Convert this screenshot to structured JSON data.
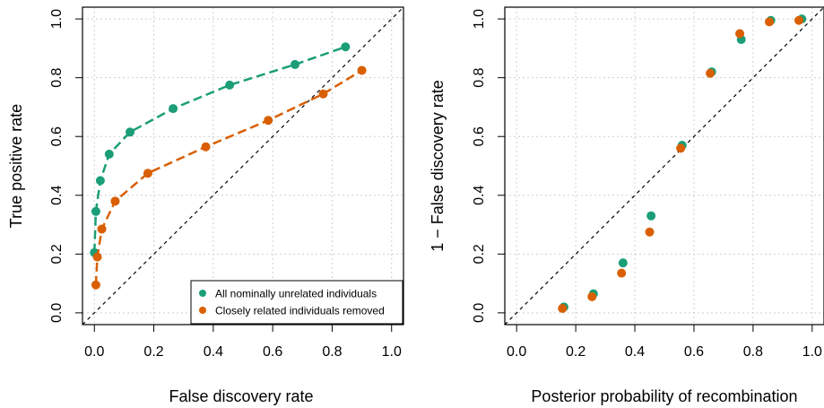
{
  "colors": {
    "series1": "#1b9e77",
    "series2": "#d95f02"
  },
  "chart_data": [
    {
      "type": "line",
      "xlabel": "False discovery rate",
      "ylabel": "True positive rate",
      "xlim": [
        0,
        1
      ],
      "ylim": [
        0,
        1
      ],
      "xticks": [
        "0.0",
        "0.2",
        "0.4",
        "0.6",
        "0.8",
        "1.0"
      ],
      "yticks": [
        "0.0",
        "0.2",
        "0.4",
        "0.6",
        "0.8",
        "1.0"
      ],
      "grid": true,
      "diagonal_reference": true,
      "legend": "bottom-right",
      "series": [
        {
          "name": "All nominally unrelated individuals",
          "color": "#1b9e77",
          "x": [
            0.0,
            0.005,
            0.02,
            0.05,
            0.12,
            0.265,
            0.455,
            0.675,
            0.845
          ],
          "y": [
            0.205,
            0.345,
            0.45,
            0.54,
            0.615,
            0.695,
            0.775,
            0.845,
            0.905
          ]
        },
        {
          "name": "Closely related individuals removed",
          "color": "#d95f02",
          "x": [
            0.005,
            0.01,
            0.025,
            0.07,
            0.18,
            0.375,
            0.585,
            0.77,
            0.9
          ],
          "y": [
            0.095,
            0.19,
            0.285,
            0.38,
            0.475,
            0.565,
            0.655,
            0.745,
            0.825
          ]
        }
      ]
    },
    {
      "type": "scatter",
      "xlabel": "Posterior probability of recombination",
      "ylabel": "1 − False discovery rate",
      "xlim": [
        0,
        1
      ],
      "ylim": [
        0,
        1
      ],
      "xticks": [
        "0.0",
        "0.2",
        "0.4",
        "0.6",
        "0.8",
        "1.0"
      ],
      "yticks": [
        "0.0",
        "0.2",
        "0.4",
        "0.6",
        "0.8",
        "1.0"
      ],
      "grid": true,
      "diagonal_reference": true,
      "series": [
        {
          "color": "#1b9e77",
          "x": [
            0.16,
            0.26,
            0.36,
            0.455,
            0.56,
            0.66,
            0.76,
            0.86,
            0.965
          ],
          "y": [
            0.02,
            0.065,
            0.17,
            0.33,
            0.57,
            0.82,
            0.93,
            0.995,
            1.0
          ]
        },
        {
          "color": "#d95f02",
          "x": [
            0.155,
            0.255,
            0.355,
            0.45,
            0.555,
            0.655,
            0.755,
            0.855,
            0.955
          ],
          "y": [
            0.015,
            0.055,
            0.135,
            0.275,
            0.56,
            0.815,
            0.95,
            0.99,
            0.995
          ]
        }
      ]
    }
  ]
}
